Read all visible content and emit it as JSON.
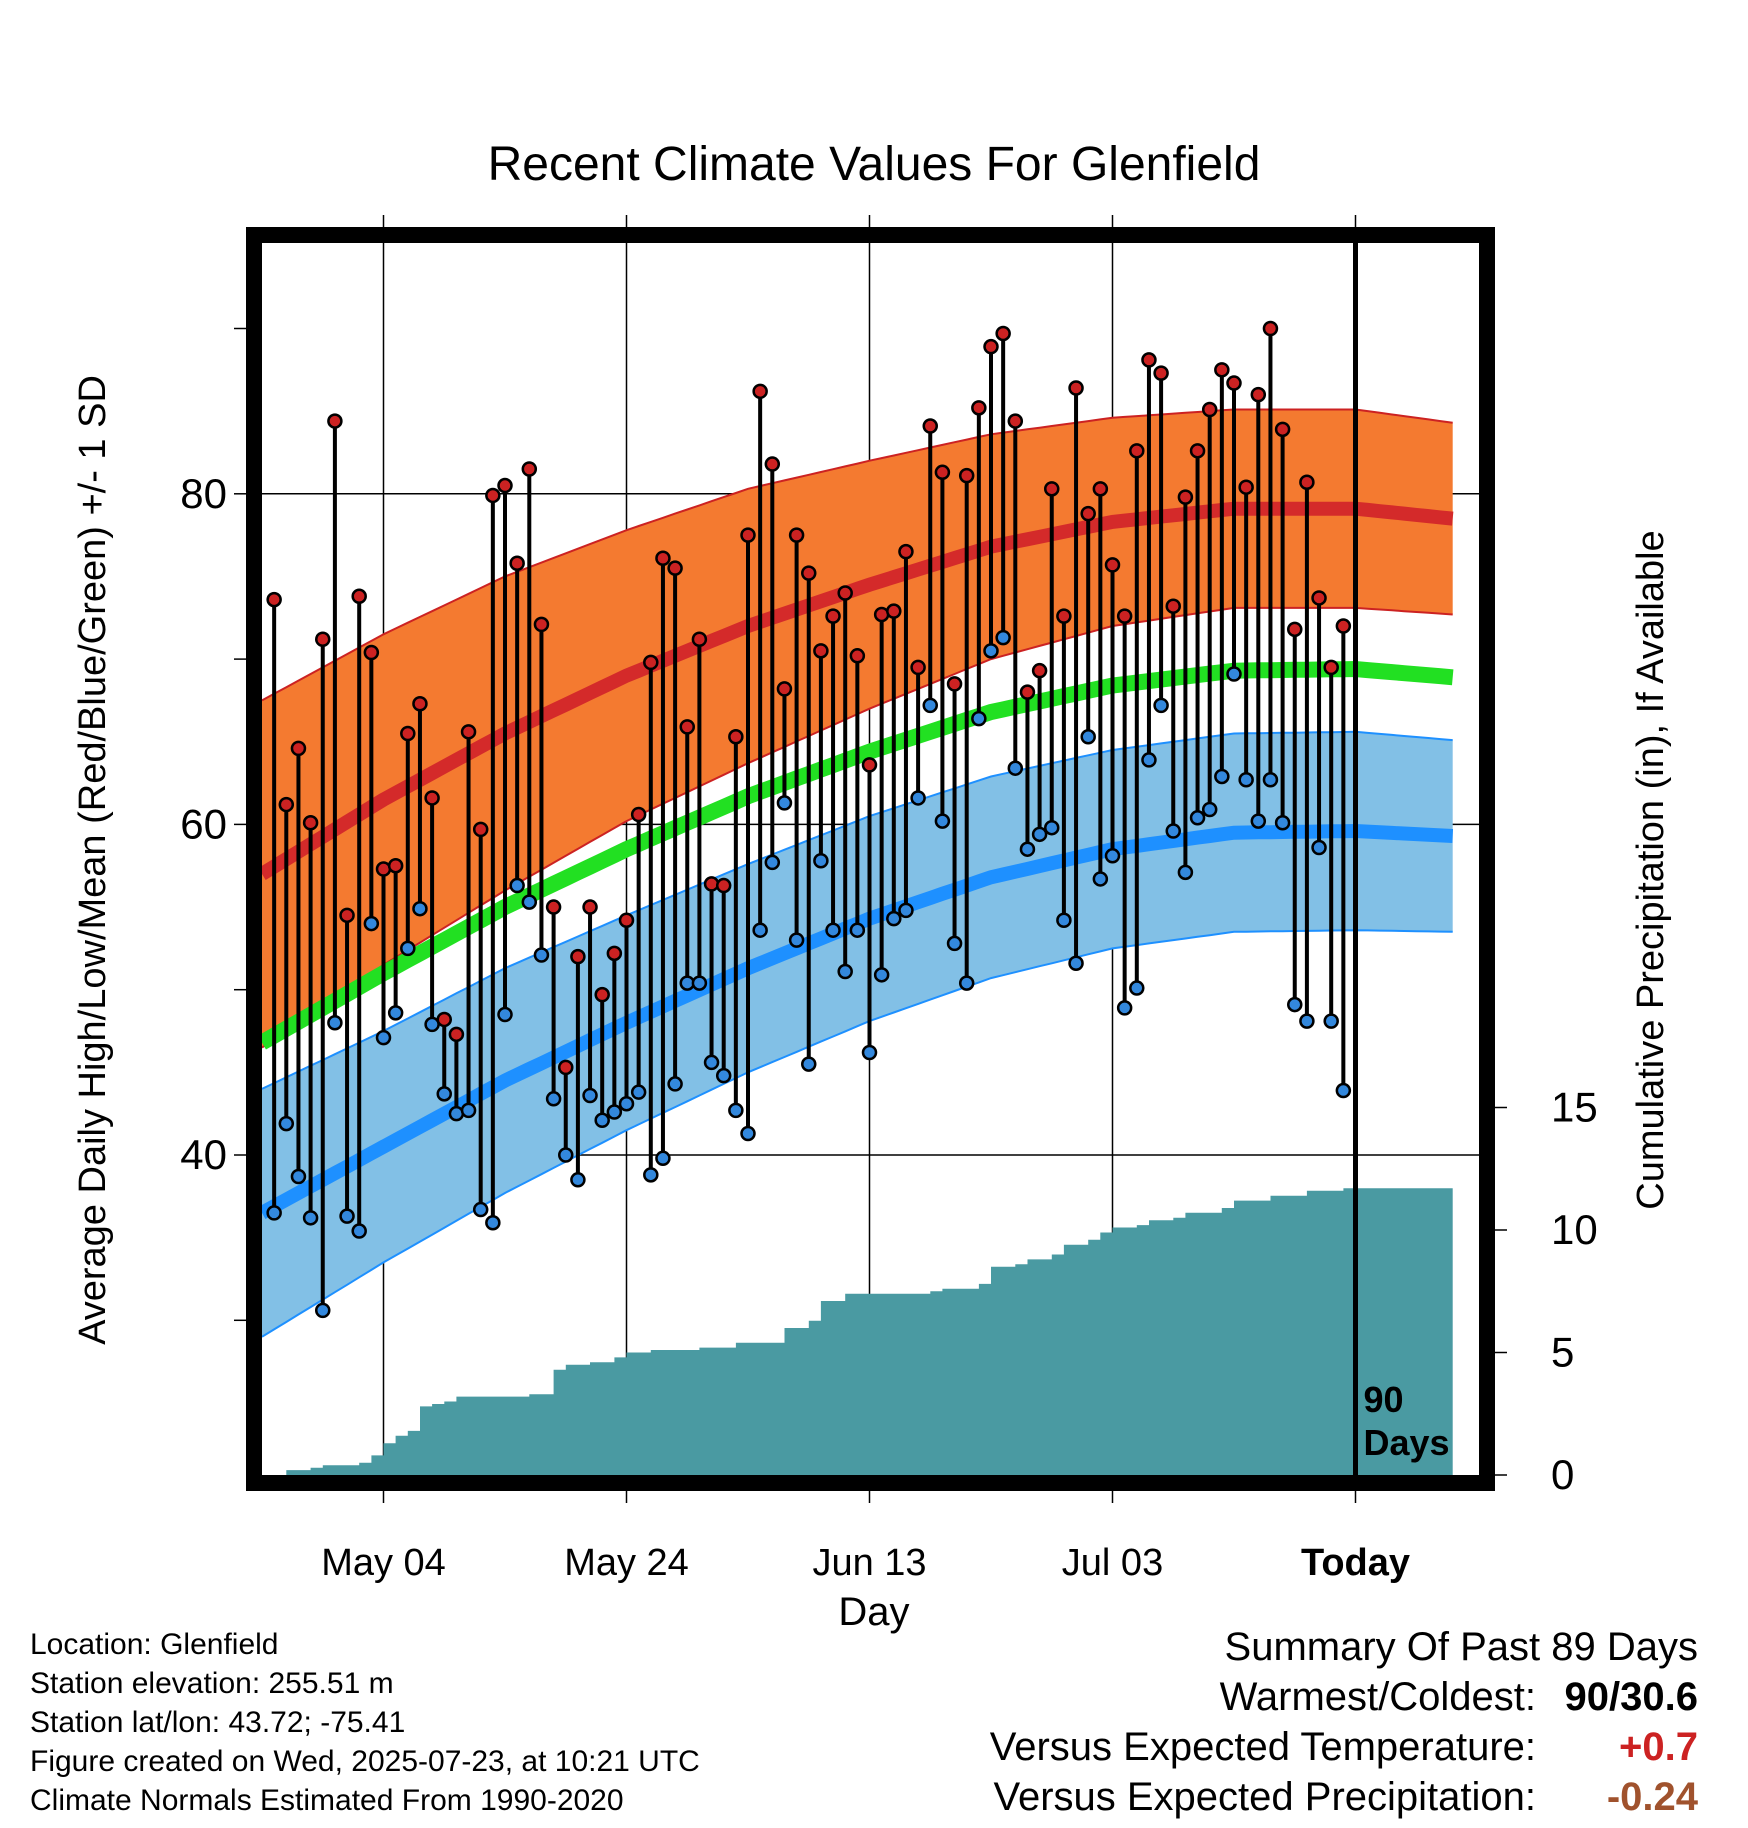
{
  "title": "Recent Climate Values For Glenfield",
  "footer": {
    "location": "Location: Glenfield",
    "elevation": "Station elevation: 255.51 m",
    "latlon": "Station lat/lon: 43.72; -75.41",
    "created": "Figure created on Wed, 2025-07-23, at 10:21 UTC",
    "normals": "Climate Normals Estimated From 1990-2020"
  },
  "summary": {
    "heading": "Summary Of Past 89 Days",
    "warm_cold_label": "Warmest/Coldest:",
    "warm_cold_value": "90/30.6",
    "temp_label": "Versus Expected Temperature:",
    "temp_value": "+0.7",
    "precip_label": "Versus Expected Precipitation:",
    "precip_value": "-0.24"
  },
  "chart_data": {
    "type": "line",
    "xlabel": "Day",
    "ylabel": "Average Daily High/Low/Mean (Red/Blue/Green) +/- 1 SD",
    "y2label": "Cumulative Precipitation (in), If Available",
    "xlim": [
      -89,
      9
    ],
    "ylim": [
      20,
      95
    ],
    "y2lim": [
      0,
      60
    ],
    "x_ticks": [
      {
        "x": -79,
        "label": "May 04"
      },
      {
        "x": -59,
        "label": "May 24"
      },
      {
        "x": -39,
        "label": "Jun 13"
      },
      {
        "x": -19,
        "label": "Jul 03"
      },
      {
        "x": 1,
        "label": "Today"
      }
    ],
    "y_ticks": [
      40,
      60,
      80
    ],
    "y_minor_ticks": [
      30,
      50,
      70,
      90
    ],
    "y2_ticks": [
      0,
      5,
      10,
      15
    ],
    "today_marker": {
      "x": 1,
      "label_line1": "90",
      "label_line2": "Days"
    },
    "colors": {
      "high_band": "#f47a30",
      "high_mean": "#d42a2a",
      "low_band": "#82c0e6",
      "low_mean": "#1e90ff",
      "mean_line": "#22e022",
      "precip": "#4a9aa2",
      "high_point": "#cc2222",
      "low_point": "#3388dd",
      "summary_temp": "#cc2222",
      "summary_precip": "#a0522d"
    },
    "normals": {
      "x": [
        -89,
        -79,
        -69,
        -59,
        -49,
        -39,
        -29,
        -19,
        -9,
        1,
        9
      ],
      "high_mean": [
        57,
        61.5,
        65.5,
        69,
        72,
        74.5,
        76.8,
        78.3,
        79.1,
        79.1,
        78.5
      ],
      "high_sd": [
        10.5,
        10,
        9.5,
        8.8,
        8.3,
        7.5,
        6.8,
        6.3,
        6,
        6,
        5.8
      ],
      "low_mean": [
        36.5,
        40.5,
        44.5,
        48,
        51.3,
        54.3,
        56.8,
        58.5,
        59.5,
        59.6,
        59.3
      ],
      "low_sd": [
        7.5,
        7,
        6.8,
        6.5,
        6.3,
        6.2,
        6.1,
        6.0,
        6.0,
        6.0,
        5.8
      ],
      "mean": [
        46.8,
        51,
        55,
        58.5,
        61.7,
        64.4,
        66.8,
        68.4,
        69.3,
        69.4,
        68.9
      ]
    },
    "daily_high": [
      73.6,
      61.2,
      64.6,
      60.1,
      71.2,
      84.4,
      54.5,
      73.8,
      70.4,
      57.3,
      57.5,
      65.5,
      67.3,
      61.6,
      48.2,
      47.3,
      65.6,
      59.7,
      79.9,
      80.5,
      75.8,
      81.5,
      72.1,
      55,
      45.3,
      52,
      55,
      49.7,
      52.2,
      54.2,
      60.6,
      69.8,
      76.1,
      75.5,
      65.9,
      71.2,
      56.4,
      56.3,
      65.3,
      77.5,
      86.2,
      81.8,
      68.2,
      77.5,
      75.2,
      70.5,
      72.6,
      74,
      70.2,
      63.6,
      72.7,
      72.9,
      76.5,
      69.5,
      84.1,
      81.3,
      68.5,
      81.1,
      85.2,
      88.9,
      89.7,
      84.4,
      68,
      69.3,
      80.3,
      72.6,
      86.4,
      78.8,
      80.3,
      75.7,
      72.6,
      82.6,
      88.1,
      87.3,
      73.2,
      79.8,
      82.6,
      85.1,
      87.5,
      86.7,
      80.4,
      86,
      90,
      83.9,
      71.8,
      80.7,
      73.7,
      69.5,
      72
    ],
    "daily_low": [
      36.5,
      41.9,
      38.7,
      36.2,
      30.6,
      48,
      36.3,
      35.4,
      54,
      47.1,
      48.6,
      52.5,
      54.9,
      47.9,
      43.7,
      42.5,
      42.7,
      36.7,
      35.9,
      48.5,
      56.3,
      55.3,
      52.1,
      43.4,
      40,
      38.5,
      43.6,
      42.1,
      42.6,
      43.1,
      43.8,
      38.8,
      39.8,
      44.3,
      50.4,
      50.4,
      45.6,
      44.8,
      42.7,
      41.3,
      53.6,
      57.7,
      61.3,
      53,
      45.5,
      57.8,
      53.6,
      51.1,
      53.6,
      46.2,
      50.9,
      54.3,
      54.8,
      61.6,
      67.2,
      60.2,
      52.8,
      50.4,
      66.4,
      70.5,
      71.3,
      63.4,
      58.5,
      59.4,
      59.8,
      54.2,
      51.6,
      65.3,
      56.7,
      58.1,
      48.9,
      50.1,
      63.9,
      67.2,
      59.6,
      57.1,
      60.4,
      60.9,
      62.9,
      69.1,
      62.7,
      60.2,
      62.7,
      60.1,
      49.1,
      48.1,
      58.6,
      48.1,
      43.9
    ],
    "precip": {
      "x": [
        -89,
        -87,
        -85,
        -84,
        -83,
        -81,
        -80,
        -79,
        -78,
        -77,
        -76,
        -75,
        -74,
        -73,
        -71,
        -69,
        -67,
        -65,
        -64,
        -62,
        -60,
        -59,
        -57,
        -55,
        -53,
        -50,
        -47,
        -46,
        -44,
        -43,
        -41,
        -37,
        -36,
        -34,
        -33,
        -30,
        -29,
        -27,
        -26,
        -24,
        -23,
        -21,
        -20,
        -19,
        -17,
        -16,
        -14,
        -13,
        -10,
        -9,
        -7,
        -6,
        -4,
        -3,
        -2,
        0,
        1,
        9
      ],
      "values": [
        0,
        0.2,
        0.3,
        0.4,
        0.4,
        0.5,
        0.8,
        1.3,
        1.6,
        1.8,
        2.8,
        2.9,
        3.0,
        3.2,
        3.2,
        3.2,
        3.3,
        4.3,
        4.5,
        4.6,
        4.8,
        5.0,
        5.1,
        5.1,
        5.2,
        5.4,
        5.4,
        6.0,
        6.3,
        7.1,
        7.4,
        7.4,
        7.4,
        7.5,
        7.6,
        7.8,
        8.5,
        8.6,
        8.8,
        9.0,
        9.4,
        9.6,
        9.9,
        10.1,
        10.2,
        10.4,
        10.5,
        10.7,
        10.9,
        11.2,
        11.2,
        11.4,
        11.4,
        11.6,
        11.6,
        11.7,
        11.7,
        11.7
      ]
    }
  }
}
